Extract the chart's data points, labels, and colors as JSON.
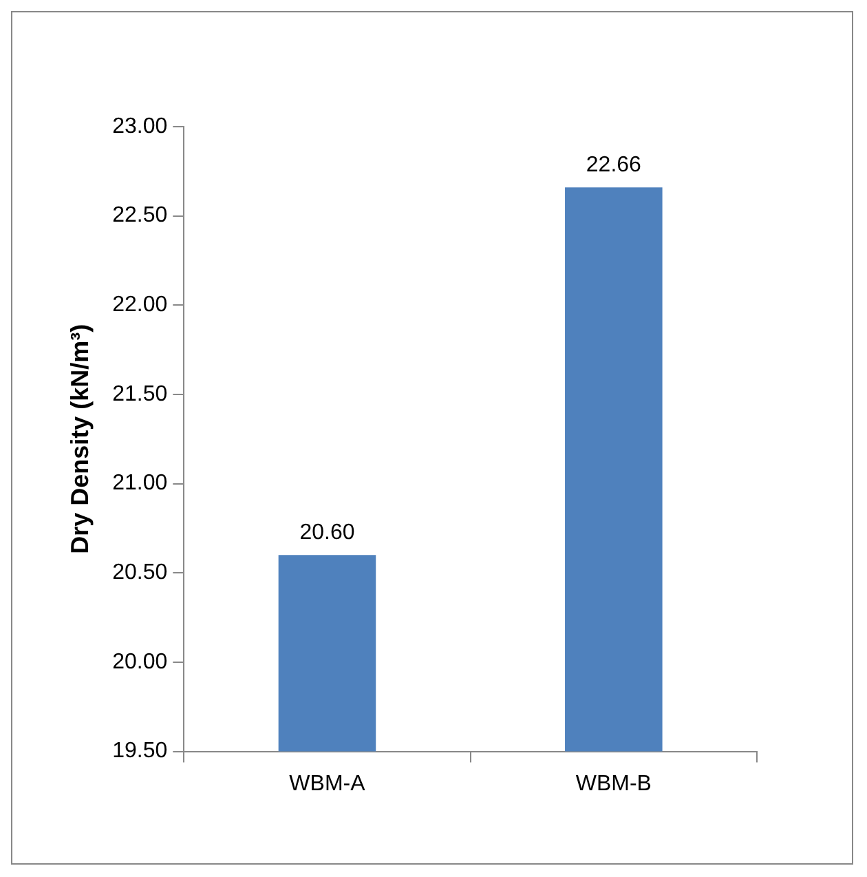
{
  "chart_data": {
    "type": "bar",
    "ylabel": "Dry Density (kN/m³)",
    "categories": [
      "WBM-A",
      "WBM-B"
    ],
    "values": [
      20.6,
      22.66
    ],
    "value_labels": [
      "20.60",
      "22.66"
    ],
    "color": "#4f81bd",
    "ylim": [
      19.5,
      23
    ],
    "yticks": [
      {
        "value": 19.5,
        "label": "19.50"
      },
      {
        "value": 20,
        "label": "20.00"
      },
      {
        "value": 20.5,
        "label": "20.50"
      },
      {
        "value": 21,
        "label": "21.00"
      },
      {
        "value": 21.5,
        "label": "21.50"
      },
      {
        "value": 22,
        "label": "22.00"
      },
      {
        "value": 22.5,
        "label": "22.50"
      },
      {
        "value": 23,
        "label": "23.00"
      }
    ],
    "grid": false,
    "legend": false
  }
}
